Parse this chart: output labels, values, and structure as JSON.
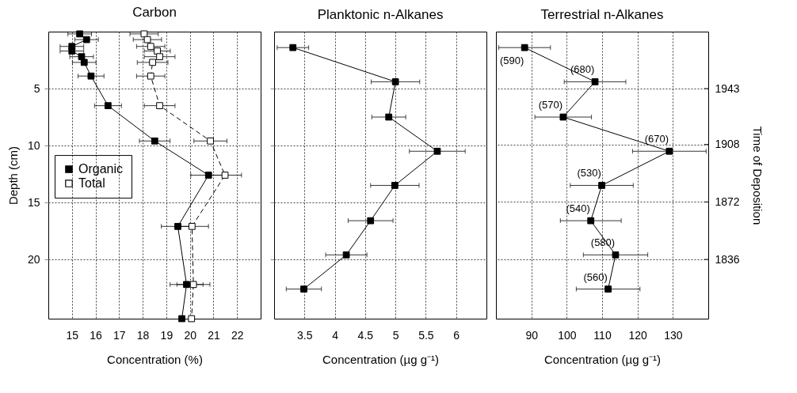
{
  "chart_data": [
    {
      "type": "line",
      "title": "Carbon",
      "xlabel": "Concentration (%)",
      "ylabel": "Depth (cm)",
      "xlim": [
        14,
        23
      ],
      "ylim": [
        25.2,
        0
      ],
      "xticks": [
        15,
        16,
        17,
        18,
        19,
        20,
        21,
        22
      ],
      "yticks": [
        5,
        10,
        15,
        20
      ],
      "grid": true,
      "legend": "left",
      "marker": "square",
      "series": [
        {
          "name": "Organic",
          "color": "#000000",
          "line_style": "solid",
          "x": [
            15.33,
            15.62,
            15.0,
            15.0,
            15.41,
            15.52,
            15.81,
            16.53,
            18.51,
            20.79,
            19.49,
            19.86,
            19.66
          ],
          "values": [
            0.2,
            0.7,
            1.3,
            1.7,
            2.2,
            2.7,
            3.9,
            6.5,
            9.6,
            12.6,
            17.1,
            22.2,
            25.2
          ],
          "xerrors": [
            0.5,
            0.5,
            0.5,
            0.5,
            0.5,
            0.5,
            0.55,
            0.57,
            0.65,
            0.75,
            0.7,
            0.7,
            null
          ]
        },
        {
          "name": "Total",
          "color": "#000000",
          "line_style": "dashed",
          "x": [
            18.06,
            18.2,
            18.34,
            18.62,
            18.72,
            18.42,
            18.34,
            18.72,
            20.87,
            21.49,
            20.09,
            20.15,
            20.07
          ],
          "values": [
            0.2,
            0.7,
            1.3,
            1.7,
            2.2,
            2.7,
            3.9,
            6.5,
            9.6,
            12.6,
            17.1,
            22.2,
            25.2
          ],
          "xerrors": [
            0.6,
            0.6,
            0.6,
            0.55,
            0.65,
            0.65,
            0.6,
            0.65,
            0.7,
            0.7,
            0.7,
            0.7,
            null
          ]
        }
      ]
    },
    {
      "type": "line",
      "title": "Planktonic n-Alkanes",
      "xlabel": "Concentration (µg g⁻¹)",
      "xlim": [
        3,
        6.5
      ],
      "ylim": [
        25.2,
        0
      ],
      "xticks": [
        3.5,
        4,
        4.5,
        5,
        5.5,
        6
      ],
      "yticks": [
        5,
        10,
        15,
        20
      ],
      "grid": true,
      "marker": "square",
      "tick_labels": "x",
      "series": [
        {
          "color": "#000000",
          "line_style": "solid",
          "x": [
            3.31,
            5.0,
            4.89,
            5.69,
            4.99,
            4.59,
            4.19,
            3.49
          ],
          "values": [
            1.4,
            4.4,
            7.5,
            10.5,
            13.5,
            16.6,
            19.6,
            22.6
          ],
          "xerrors": [
            0.26,
            0.4,
            0.28,
            0.46,
            0.4,
            0.37,
            0.34,
            0.29
          ]
        }
      ]
    },
    {
      "type": "line",
      "title": "Terrestrial n-Alkanes",
      "xlabel": "Concentration (µg g⁻¹)",
      "y2label": "Time of Deposition",
      "xlim": [
        80,
        140
      ],
      "ylim": [
        25.2,
        0
      ],
      "y2lim": [
        1798.9,
        1978.7
      ],
      "xticks": [
        90,
        100,
        110,
        120,
        130
      ],
      "y2ticks": [
        1943,
        1908,
        1872,
        1836
      ],
      "grid": true,
      "marker": "square",
      "series": [
        {
          "color": "#000000",
          "line_style": "solid",
          "x": [
            88.1,
            108.0,
            99.0,
            129.0,
            109.9,
            106.8,
            113.8,
            111.7
          ],
          "values": [
            1.4,
            4.4,
            7.5,
            10.5,
            13.5,
            16.6,
            19.6,
            22.6
          ],
          "xerrors": [
            7.3,
            8.7,
            8.0,
            10.4,
            8.9,
            8.6,
            9.1,
            9.0
          ]
        }
      ],
      "annotations": [
        {
          "text": "(590)",
          "x": 88.1,
          "y": 1.4
        },
        {
          "text": "(680)",
          "x": 108.0,
          "y": 4.4
        },
        {
          "text": "(570)",
          "x": 99.0,
          "y": 7.5
        },
        {
          "text": "(670)",
          "x": 129.0,
          "y": 10.5
        },
        {
          "text": "(530)",
          "x": 109.9,
          "y": 13.5
        },
        {
          "text": "(540)",
          "x": 106.8,
          "y": 16.6
        },
        {
          "text": "(580)",
          "x": 113.8,
          "y": 19.6
        },
        {
          "text": "(560)",
          "x": 111.7,
          "y": 22.6
        }
      ]
    }
  ]
}
